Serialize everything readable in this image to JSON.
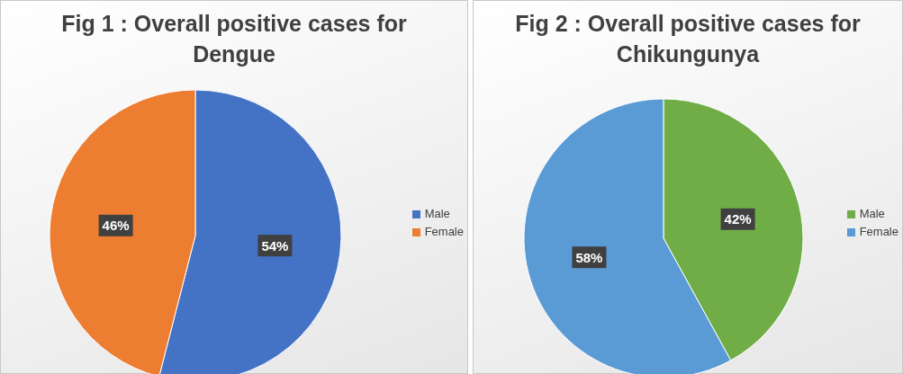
{
  "chart_data": [
    {
      "type": "pie",
      "title": "Fig 1 : Overall positive cases for Dengue",
      "categories": [
        "Male",
        "Female"
      ],
      "values": [
        54,
        46
      ],
      "value_labels": [
        "54%",
        "46%"
      ],
      "colors": [
        "#4472c4",
        "#ed7d31"
      ],
      "legend": "right"
    },
    {
      "type": "pie",
      "title": "Fig 2 : Overall positive cases for Chikungunya",
      "categories": [
        "Male",
        "Female"
      ],
      "values": [
        42,
        58
      ],
      "value_labels": [
        "42%",
        "58%"
      ],
      "colors": [
        "#70ad47",
        "#5b9bd5"
      ],
      "legend": "right"
    }
  ]
}
